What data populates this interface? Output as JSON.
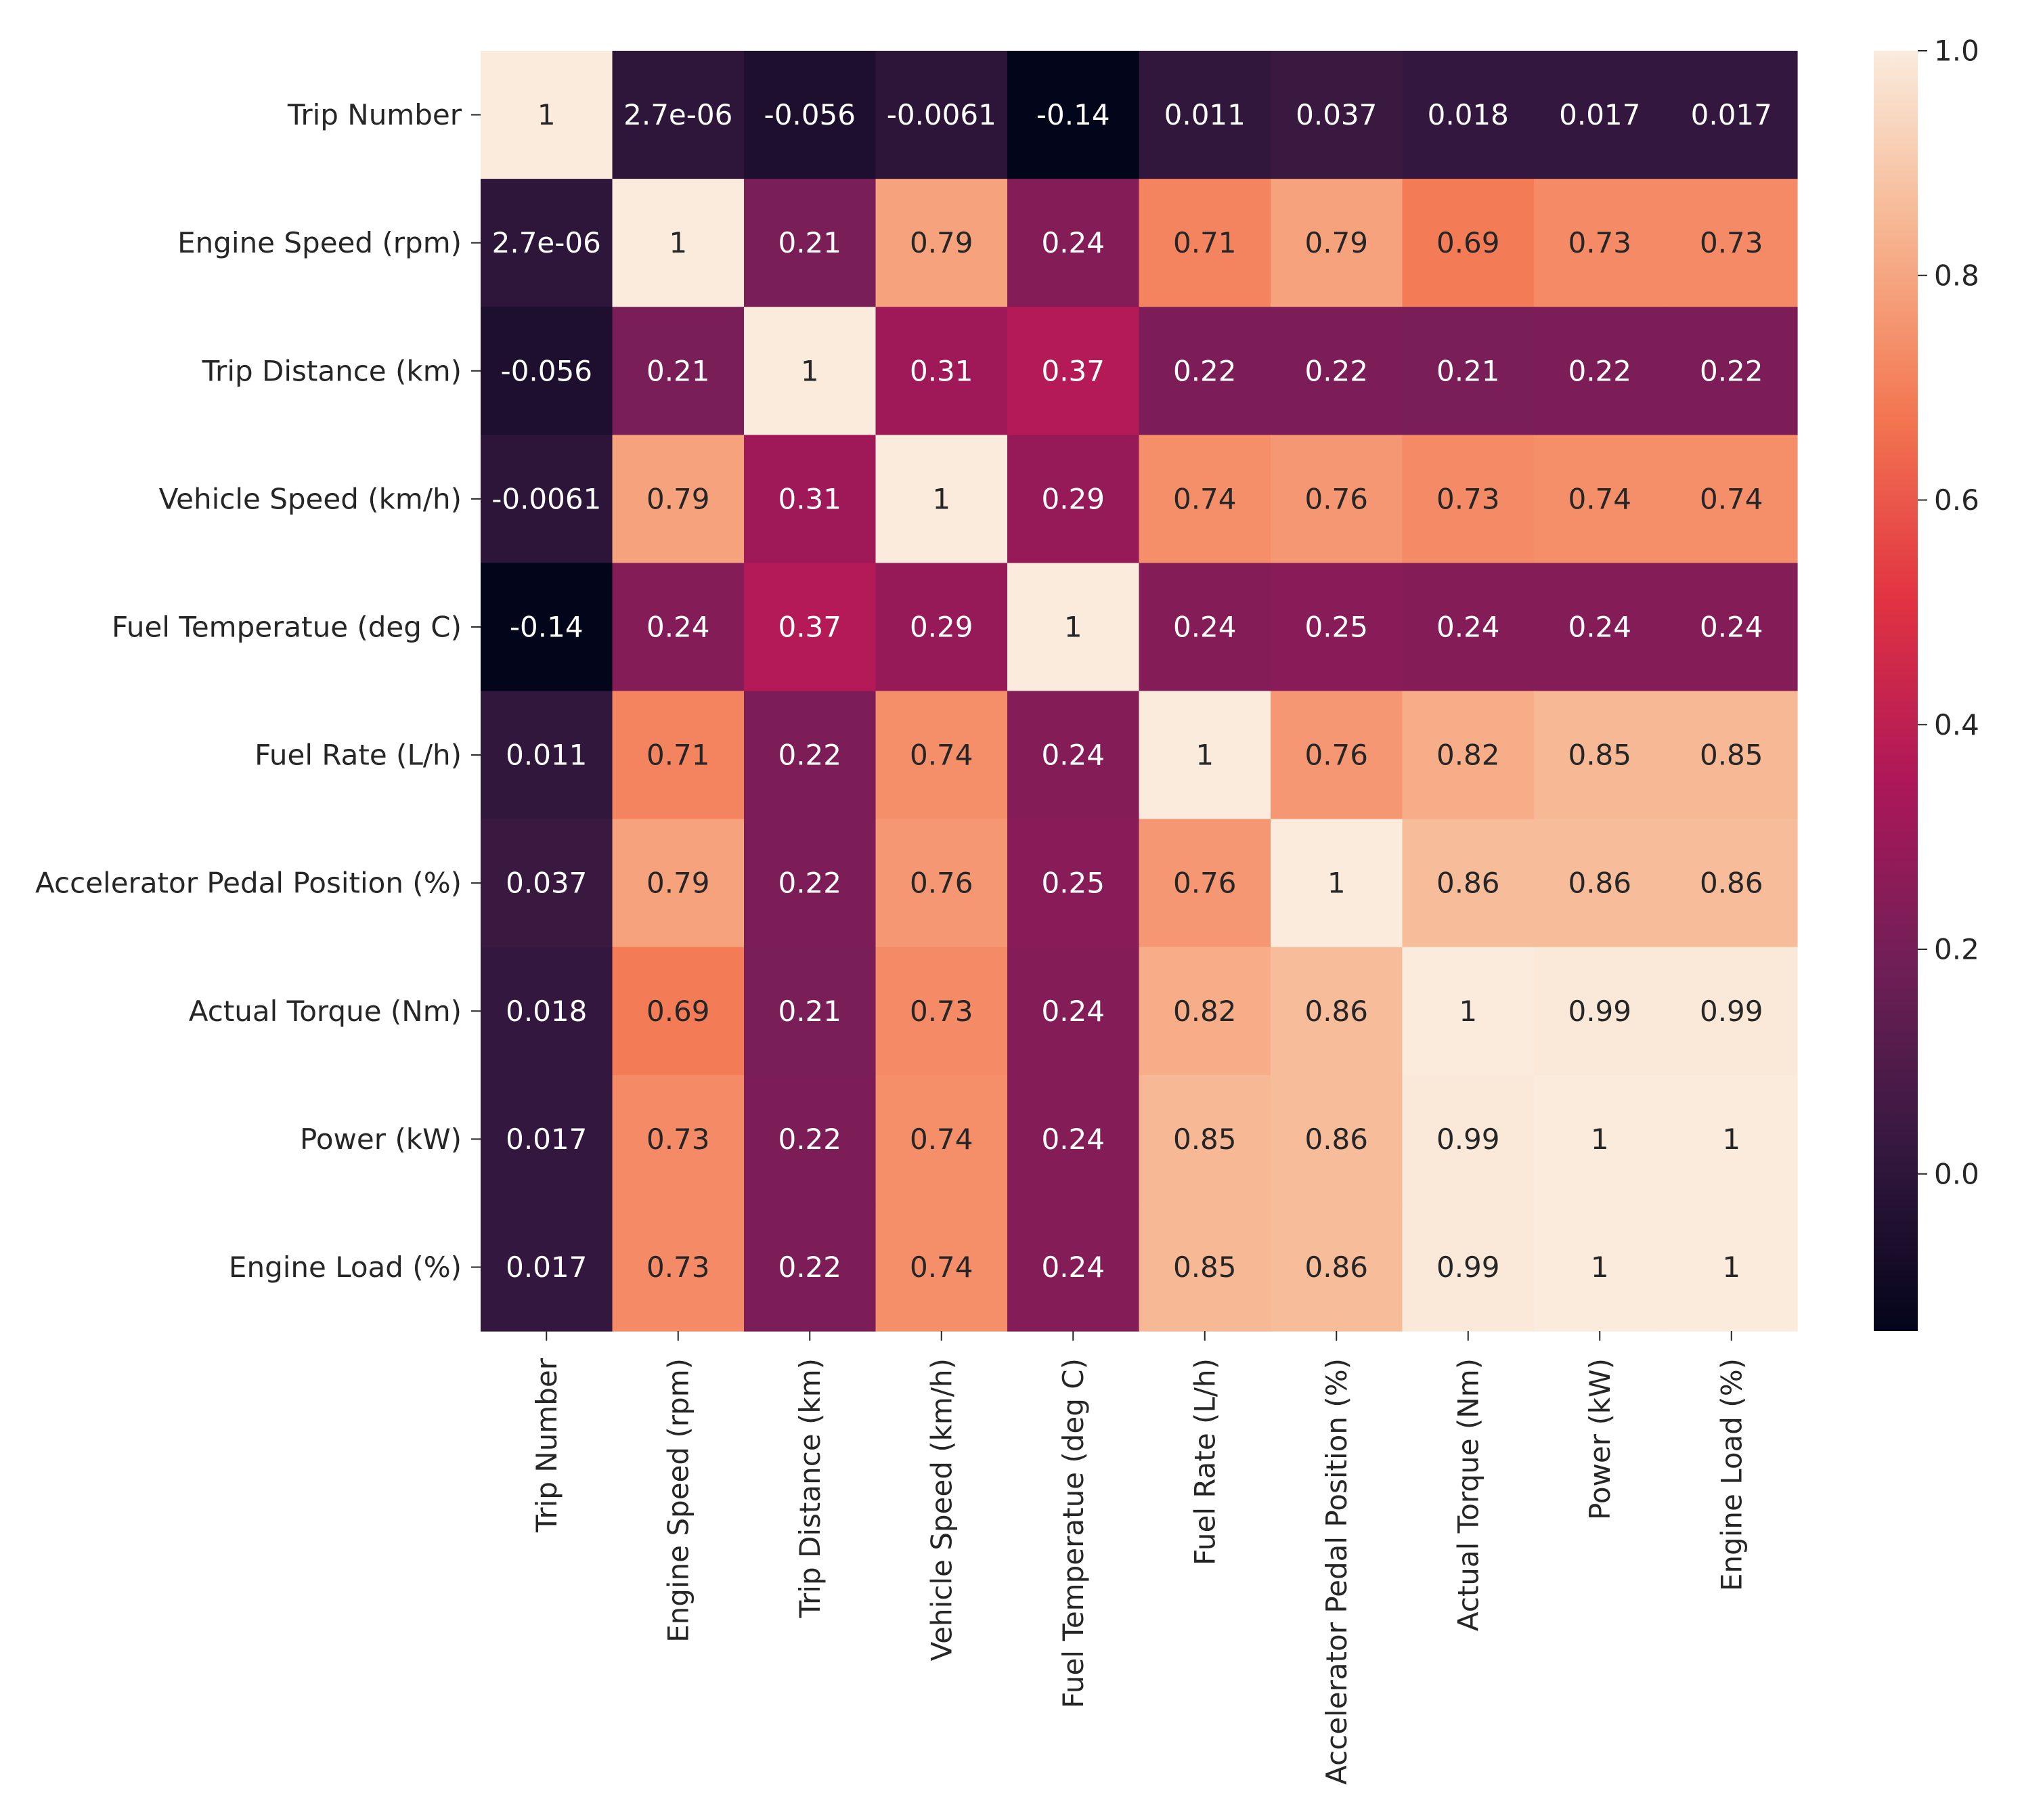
{
  "chart_data": {
    "type": "heatmap",
    "title": "",
    "xlabel": "",
    "ylabel": "",
    "labels": [
      "Trip Number",
      "Engine Speed (rpm)",
      "Trip Distance (km)",
      "Vehicle Speed (km/h)",
      "Fuel Temperatue (deg C)",
      "Fuel Rate (L/h)",
      "Accelerator Pedal Position (%)",
      "Actual Torque (Nm)",
      "Power (kW)",
      "Engine Load (%)"
    ],
    "annotations": [
      [
        "1",
        "2.7e-06",
        "-0.056",
        "-0.0061",
        "-0.14",
        "0.011",
        "0.037",
        "0.018",
        "0.017",
        "0.017"
      ],
      [
        "2.7e-06",
        "1",
        "0.21",
        "0.79",
        "0.24",
        "0.71",
        "0.79",
        "0.69",
        "0.73",
        "0.73"
      ],
      [
        "-0.056",
        "0.21",
        "1",
        "0.31",
        "0.37",
        "0.22",
        "0.22",
        "0.21",
        "0.22",
        "0.22"
      ],
      [
        "-0.0061",
        "0.79",
        "0.31",
        "1",
        "0.29",
        "0.74",
        "0.76",
        "0.73",
        "0.74",
        "0.74"
      ],
      [
        "-0.14",
        "0.24",
        "0.37",
        "0.29",
        "1",
        "0.24",
        "0.25",
        "0.24",
        "0.24",
        "0.24"
      ],
      [
        "0.011",
        "0.71",
        "0.22",
        "0.74",
        "0.24",
        "1",
        "0.76",
        "0.82",
        "0.85",
        "0.85"
      ],
      [
        "0.037",
        "0.79",
        "0.22",
        "0.76",
        "0.25",
        "0.76",
        "1",
        "0.86",
        "0.86",
        "0.86"
      ],
      [
        "0.018",
        "0.69",
        "0.21",
        "0.73",
        "0.24",
        "0.82",
        "0.86",
        "1",
        "0.99",
        "0.99"
      ],
      [
        "0.017",
        "0.73",
        "0.22",
        "0.74",
        "0.24",
        "0.85",
        "0.86",
        "0.99",
        "1",
        "1"
      ],
      [
        "0.017",
        "0.73",
        "0.22",
        "0.74",
        "0.24",
        "0.85",
        "0.86",
        "0.99",
        "1",
        "1"
      ]
    ],
    "colorbar": {
      "vmin": -0.14,
      "vmax": 1.0,
      "ticks": [
        0.0,
        0.2,
        0.4,
        0.6,
        0.8,
        1.0
      ],
      "tick_labels": [
        "0.0",
        "0.2",
        "0.4",
        "0.6",
        "0.8",
        "1.0"
      ],
      "colormap": "rocket",
      "colors": [
        "#03051a",
        "#35183f",
        "#701f57",
        "#ad1759",
        "#e13342",
        "#f37651",
        "#f6b48f",
        "#faebdd"
      ]
    },
    "grid": false,
    "legend": "right colorbar"
  }
}
